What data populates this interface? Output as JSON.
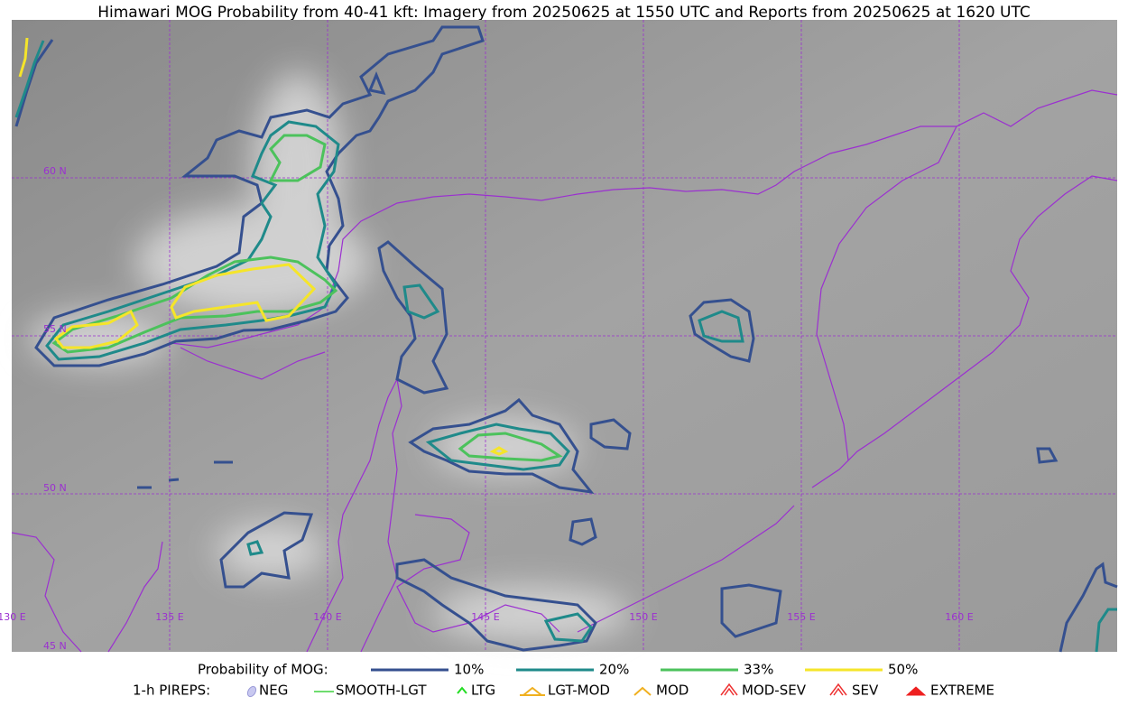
{
  "header": {
    "title": "Himawari MOG Probability from 40-41 kft: Imagery from 20250625 at 1550 UTC and Reports from 20250625 at 1620 UTC"
  },
  "map": {
    "latitude_labels": [
      "60 N",
      "55 N",
      "50 N",
      "45 N"
    ],
    "longitude_labels": [
      "130 E",
      "135 E",
      "140 E",
      "145 E",
      "150 E",
      "155 E",
      "160 E"
    ]
  },
  "legend": {
    "probability": {
      "title": "Probability of MOG:",
      "items": [
        "10%",
        "20%",
        "33%",
        "50%"
      ]
    },
    "pireps": {
      "title": "1-h PIREPS:",
      "items": [
        "NEG",
        "SMOOTH-LGT",
        "LTG",
        "LGT-MOD",
        "MOD",
        "MOD-SEV",
        "SEV",
        "EXTREME"
      ]
    }
  }
}
